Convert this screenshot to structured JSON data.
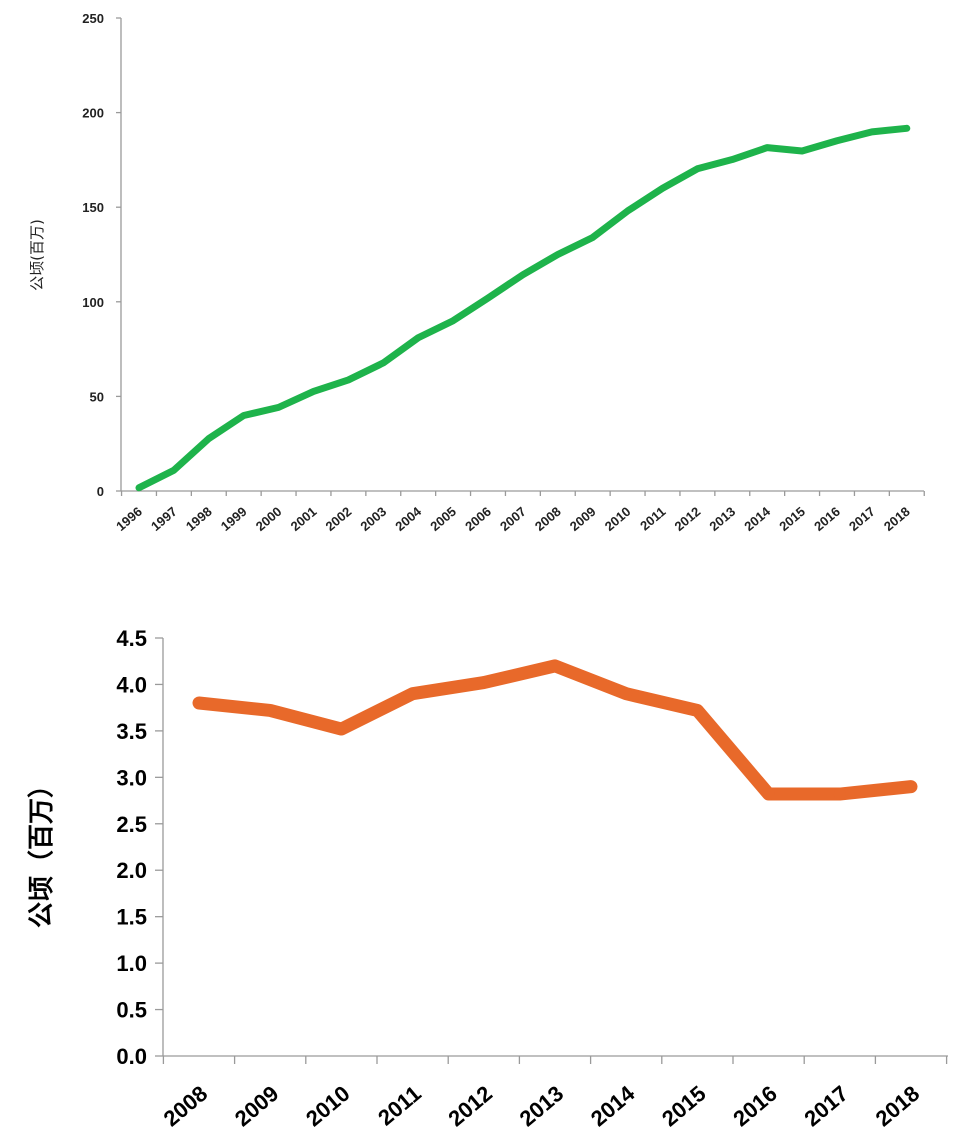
{
  "chart_data": [
    {
      "type": "line",
      "title": "",
      "xlabel": "",
      "ylabel": "公顷(百万)",
      "ylim": [
        0,
        250
      ],
      "yticks": [
        "0",
        "50",
        "100",
        "150",
        "200",
        "250"
      ],
      "categories": [
        "1996",
        "1997",
        "1998",
        "1999",
        "2000",
        "2001",
        "2002",
        "2003",
        "2004",
        "2005",
        "2006",
        "2007",
        "2008",
        "2009",
        "2010",
        "2011",
        "2012",
        "2013",
        "2014",
        "2015",
        "2016",
        "2017",
        "2018"
      ],
      "series": [
        {
          "name": "",
          "color": "#1eb34b",
          "values": [
            1.7,
            11,
            27.7,
            39.9,
            44.2,
            52.6,
            58.7,
            67.7,
            81,
            90,
            102,
            114.3,
            125,
            134,
            148,
            160,
            170.3,
            175.2,
            181.5,
            179.7,
            185.1,
            189.8,
            191.7
          ]
        }
      ]
    },
    {
      "type": "line",
      "title": "",
      "xlabel": "",
      "ylabel": "公顷（百万）",
      "ylim": [
        0,
        4.5
      ],
      "yticks": [
        "0.0",
        "0.5",
        "1.0",
        "1.5",
        "2.0",
        "2.5",
        "3.0",
        "3.5",
        "4.0",
        "4.5"
      ],
      "categories": [
        "2008",
        "2009",
        "2010",
        "2011",
        "2012",
        "2013",
        "2014",
        "2015",
        "2016",
        "2017",
        "2018"
      ],
      "series": [
        {
          "name": "",
          "color": "#e8692a",
          "values": [
            3.8,
            3.72,
            3.52,
            3.9,
            4.02,
            4.2,
            3.9,
            3.72,
            2.82,
            2.82,
            2.9
          ]
        }
      ]
    }
  ]
}
